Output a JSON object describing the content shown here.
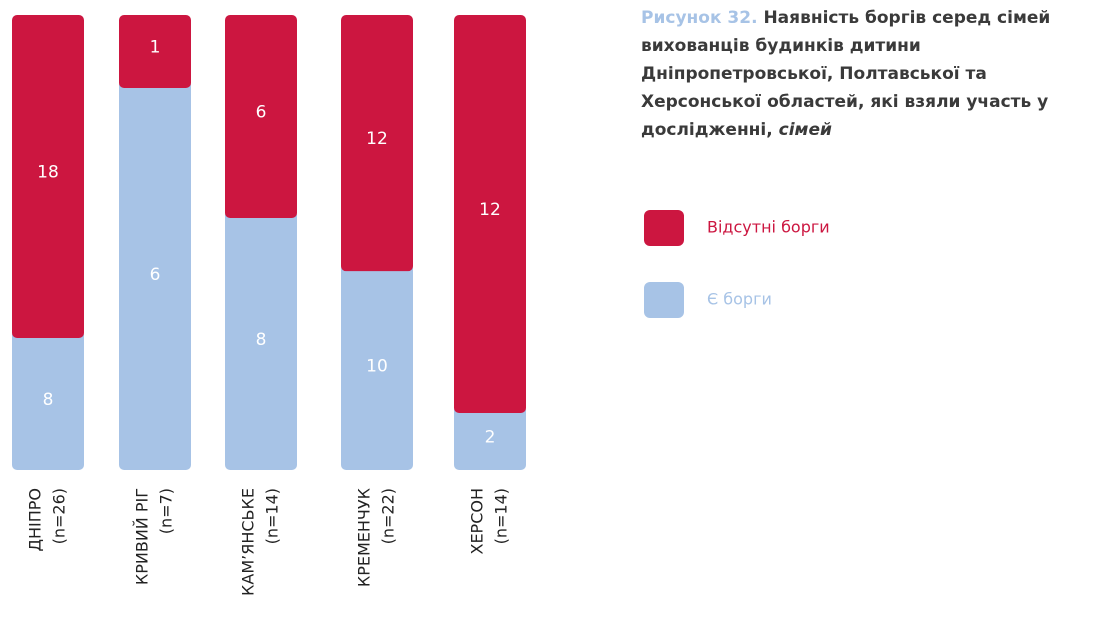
{
  "chart_data": {
    "type": "bar",
    "stacking": "percent",
    "title_label": "Рисунок 32.",
    "title": "Наявність боргів серед сімей вихованців будинків дитини Дніпропетровської, Полтавської та Херсонської областей, які взяли участь у дослідженні,",
    "title_unit": "сімей",
    "categories": [
      "ДНІПРО",
      "КРИВИЙ РІГ",
      "КАМ’ЯНСЬКЕ",
      "КРЕМЕНЧУК",
      "ХЕРСОН"
    ],
    "sample_labels": [
      "(n=26)",
      "(n=7)",
      "(n=14)",
      "(n=22)",
      "(n=14)"
    ],
    "series": [
      {
        "name": "Відсутні борги",
        "color": "#cc1640",
        "values": [
          18,
          1,
          6,
          12,
          12
        ]
      },
      {
        "name": "Є борги",
        "color": "#a7c3e6",
        "values": [
          8,
          6,
          8,
          10,
          2
        ]
      }
    ],
    "legend": "right"
  }
}
